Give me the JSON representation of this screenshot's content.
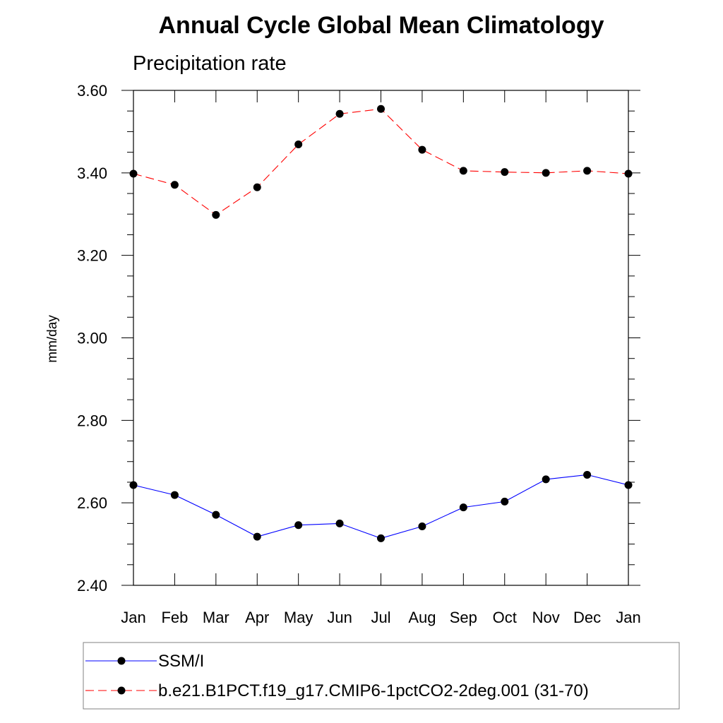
{
  "chart_data": {
    "type": "line",
    "title": "Annual Cycle Global Mean Climatology",
    "subtitle": "Precipitation rate",
    "ylabel": "mm/day",
    "xlabel": "",
    "categories": [
      "Jan",
      "Feb",
      "Mar",
      "Apr",
      "May",
      "Jun",
      "Jul",
      "Aug",
      "Sep",
      "Oct",
      "Nov",
      "Dec",
      "Jan"
    ],
    "ylim": [
      2.4,
      3.6
    ],
    "yticks": [
      "2.40",
      "2.60",
      "2.80",
      "3.00",
      "3.20",
      "3.40",
      "3.60"
    ],
    "ytick_values": [
      2.4,
      2.6,
      2.8,
      3.0,
      3.2,
      3.4,
      3.6
    ],
    "grid": false,
    "legend_position": "bottom",
    "series": [
      {
        "name": "SSM/I",
        "color": "#0000ff",
        "dash": "solid",
        "values": [
          2.643,
          2.619,
          2.571,
          2.518,
          2.546,
          2.55,
          2.514,
          2.543,
          2.589,
          2.603,
          2.657,
          2.668,
          2.643
        ]
      },
      {
        "name": "b.e21.B1PCT.f19_g17.CMIP6-1pctCO2-2deg.001 (31-70)",
        "color": "#ff0000",
        "dash": "dashed",
        "values": [
          3.398,
          3.371,
          3.298,
          3.365,
          3.469,
          3.543,
          3.555,
          3.456,
          3.405,
          3.402,
          3.4,
          3.405,
          3.398
        ]
      }
    ]
  }
}
